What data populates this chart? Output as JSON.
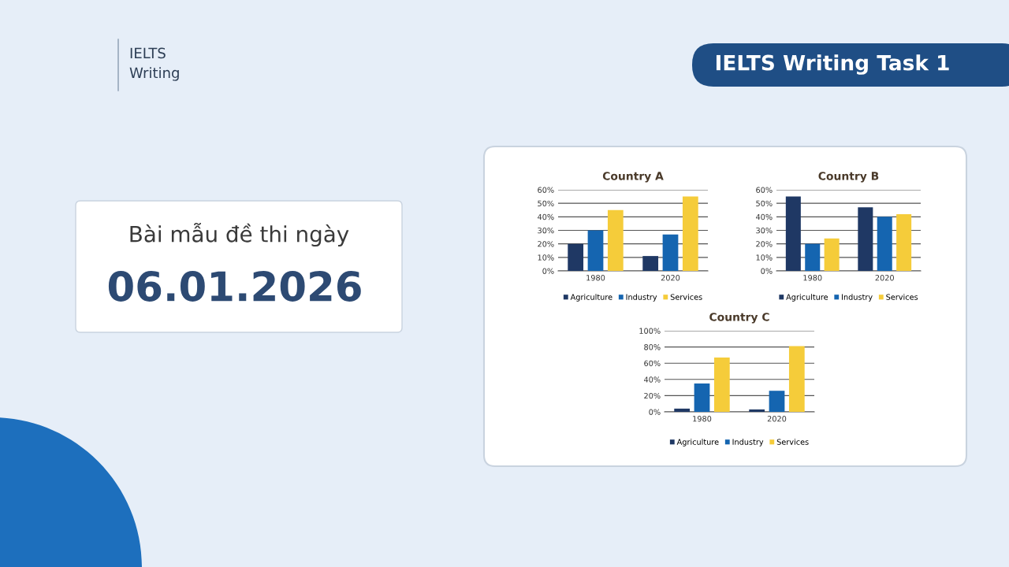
{
  "chart_data": [
    {
      "type": "bar",
      "title": "Country A",
      "categories": [
        "1980",
        "2020"
      ],
      "series": [
        {
          "name": "Agriculture",
          "color": "#1f3864",
          "values": [
            20,
            11
          ]
        },
        {
          "name": "Industry",
          "color": "#1565b0",
          "values": [
            30,
            27
          ]
        },
        {
          "name": "Services",
          "color": "#f5cc3a",
          "values": [
            45,
            55
          ]
        }
      ],
      "ylim": [
        0,
        60
      ],
      "yticks": [
        {
          "value": 0,
          "label": "0%"
        },
        {
          "value": 10,
          "label": "10%"
        },
        {
          "value": 20,
          "label": "20%"
        },
        {
          "value": 30,
          "label": "30%"
        },
        {
          "value": 40,
          "label": "40%"
        },
        {
          "value": 50,
          "label": "50%"
        },
        {
          "value": 60,
          "label": "60%"
        }
      ],
      "grid": "y",
      "legend": "bottom",
      "annotations": [
        "IELTS",
        "Writing",
        "IELTS Writing Task 1",
        "Bài mẫu đề thi ngày",
        "06.01.2026"
      ]
    },
    {
      "type": "bar",
      "title": "Country B",
      "categories": [
        "1980",
        "2020"
      ],
      "series": [
        {
          "name": "Agriculture",
          "color": "#1f3864",
          "values": [
            55,
            47
          ]
        },
        {
          "name": "Industry",
          "color": "#1565b0",
          "values": [
            20,
            40
          ]
        },
        {
          "name": "Services",
          "color": "#f5cc3a",
          "values": [
            24,
            42
          ]
        }
      ],
      "ylim": [
        0,
        60
      ],
      "yticks": [
        {
          "value": 0,
          "label": "0%"
        },
        {
          "value": 10,
          "label": "10%"
        },
        {
          "value": 20,
          "label": "20%"
        },
        {
          "value": 30,
          "label": "30%"
        },
        {
          "value": 40,
          "label": "40%"
        },
        {
          "value": 50,
          "label": "50%"
        },
        {
          "value": 60,
          "label": "60%"
        }
      ],
      "grid": "y",
      "legend": "bottom"
    },
    {
      "type": "bar",
      "title": "Country C",
      "categories": [
        "1980",
        "2020"
      ],
      "series": [
        {
          "name": "Agriculture",
          "color": "#1f3864",
          "values": [
            4,
            3
          ]
        },
        {
          "name": "Industry",
          "color": "#1565b0",
          "values": [
            35,
            26
          ]
        },
        {
          "name": "Services",
          "color": "#f5cc3a",
          "values": [
            67,
            81
          ]
        }
      ],
      "ylim": [
        0,
        100
      ],
      "yticks": [
        {
          "value": 0,
          "label": "0%"
        },
        {
          "value": 20,
          "label": "20%"
        },
        {
          "value": 40,
          "label": "40%"
        },
        {
          "value": 60,
          "label": "60%"
        },
        {
          "value": 80,
          "label": "80%"
        },
        {
          "value": 100,
          "label": "100%"
        }
      ],
      "grid": "y",
      "legend": "bottom"
    }
  ]
}
